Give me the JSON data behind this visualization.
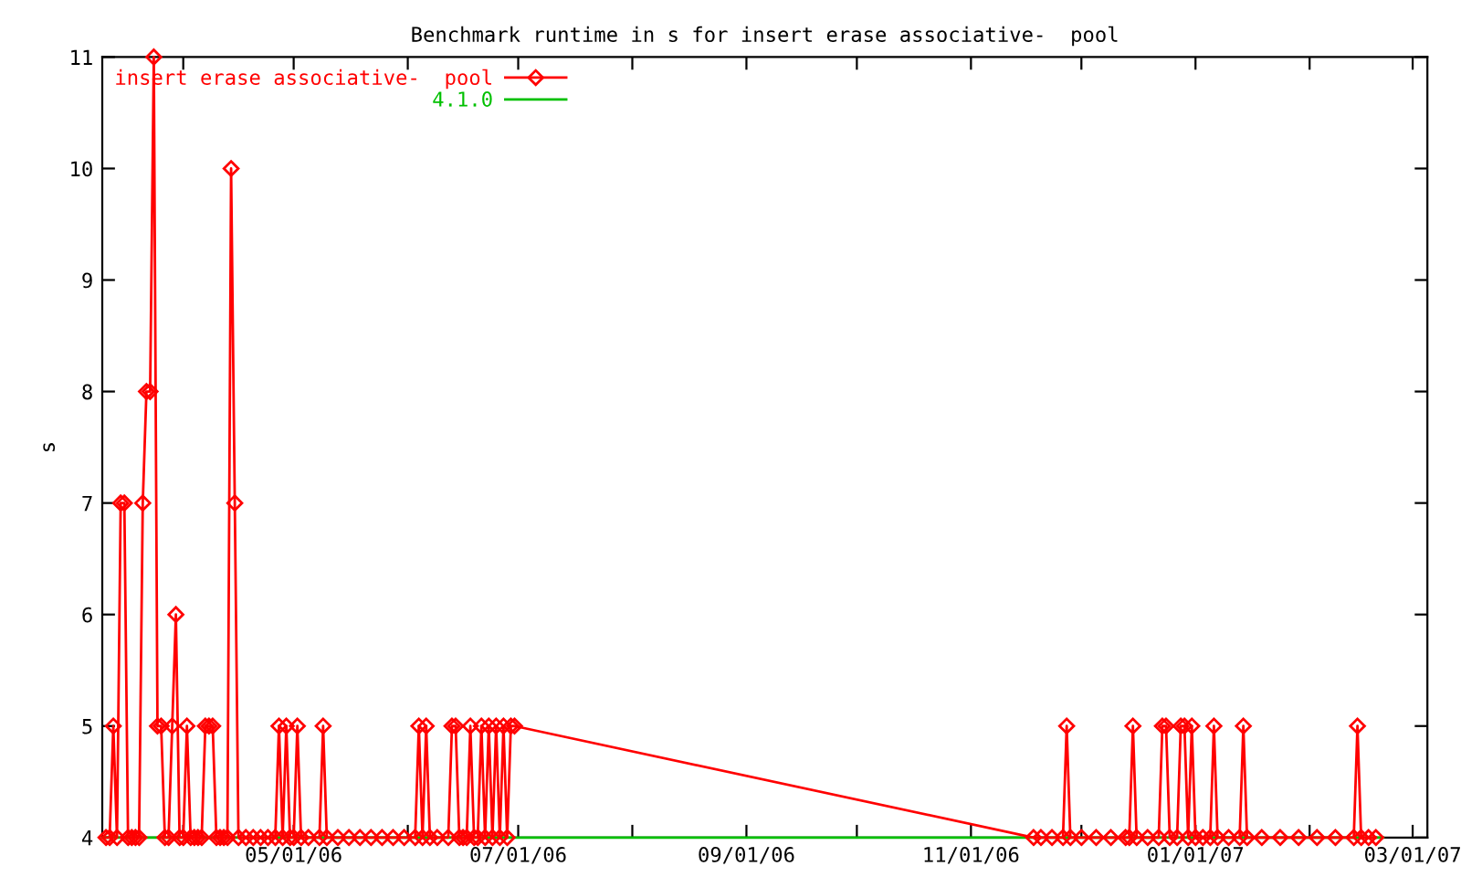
{
  "chart_data": {
    "type": "line",
    "title": "Benchmark runtime in s for insert erase associative-  pool",
    "ylabel": "s",
    "xlim": [
      "2006-03-10",
      "2007-03-05"
    ],
    "ylim": [
      4,
      11
    ],
    "yticks": [
      4,
      5,
      6,
      7,
      8,
      9,
      10,
      11
    ],
    "xticks": [
      {
        "value": "2006-04-01",
        "label": null
      },
      {
        "value": "2006-05-01",
        "label": "05/01/06"
      },
      {
        "value": "2006-06-01",
        "label": null
      },
      {
        "value": "2006-07-01",
        "label": "07/01/06"
      },
      {
        "value": "2006-08-01",
        "label": null
      },
      {
        "value": "2006-09-01",
        "label": "09/01/06"
      },
      {
        "value": "2006-10-01",
        "label": null
      },
      {
        "value": "2006-11-01",
        "label": "11/01/06"
      },
      {
        "value": "2006-12-01",
        "label": null
      },
      {
        "value": "2007-01-01",
        "label": "01/01/07"
      },
      {
        "value": "2007-02-01",
        "label": null
      },
      {
        "value": "2007-03-01",
        "label": "03/01/07"
      }
    ],
    "grid": false,
    "legend": "top left",
    "series": [
      {
        "name": "insert erase associative-  pool",
        "color": "#ff0000",
        "marker": "diamond",
        "x": [
          "2006-03-11",
          "2006-03-12",
          "2006-03-13",
          "2006-03-14",
          "2006-03-15",
          "2006-03-16",
          "2006-03-17",
          "2006-03-18",
          "2006-03-19",
          "2006-03-20",
          "2006-03-21",
          "2006-03-22",
          "2006-03-23",
          "2006-03-24",
          "2006-03-25",
          "2006-03-26",
          "2006-03-27",
          "2006-03-28",
          "2006-03-29",
          "2006-03-30",
          "2006-03-31",
          "2006-04-01",
          "2006-04-02",
          "2006-04-03",
          "2006-04-04",
          "2006-04-05",
          "2006-04-06",
          "2006-04-07",
          "2006-04-08",
          "2006-04-09",
          "2006-04-10",
          "2006-04-11",
          "2006-04-12",
          "2006-04-13",
          "2006-04-14",
          "2006-04-15",
          "2006-04-16",
          "2006-04-18",
          "2006-04-20",
          "2006-04-22",
          "2006-04-24",
          "2006-04-26",
          "2006-04-27",
          "2006-04-28",
          "2006-04-29",
          "2006-04-30",
          "2006-05-01",
          "2006-05-02",
          "2006-05-03",
          "2006-05-05",
          "2006-05-08",
          "2006-05-09",
          "2006-05-10",
          "2006-05-13",
          "2006-05-16",
          "2006-05-19",
          "2006-05-22",
          "2006-05-25",
          "2006-05-28",
          "2006-05-31",
          "2006-06-03",
          "2006-06-04",
          "2006-06-05",
          "2006-06-06",
          "2006-06-07",
          "2006-06-09",
          "2006-06-12",
          "2006-06-13",
          "2006-06-14",
          "2006-06-15",
          "2006-06-16",
          "2006-06-17",
          "2006-06-18",
          "2006-06-19",
          "2006-06-20",
          "2006-06-21",
          "2006-06-22",
          "2006-06-23",
          "2006-06-24",
          "2006-06-25",
          "2006-06-26",
          "2006-06-27",
          "2006-06-28",
          "2006-06-29",
          "2006-06-30",
          "2006-11-18",
          "2006-11-20",
          "2006-11-23",
          "2006-11-26",
          "2006-11-27",
          "2006-11-28",
          "2006-12-01",
          "2006-12-05",
          "2006-12-09",
          "2006-12-13",
          "2006-12-14",
          "2006-12-15",
          "2006-12-16",
          "2006-12-19",
          "2006-12-22",
          "2006-12-23",
          "2006-12-24",
          "2006-12-25",
          "2006-12-27",
          "2006-12-28",
          "2006-12-29",
          "2006-12-30",
          "2006-12-31",
          "2007-01-01",
          "2007-01-03",
          "2007-01-05",
          "2007-01-06",
          "2007-01-07",
          "2007-01-10",
          "2007-01-13",
          "2007-01-14",
          "2007-01-15",
          "2007-01-19",
          "2007-01-24",
          "2007-01-29",
          "2007-02-03",
          "2007-02-08",
          "2007-02-13",
          "2007-02-14",
          "2007-02-15",
          "2007-02-17",
          "2007-02-19"
        ],
        "values": [
          4,
          4,
          5,
          4,
          7,
          7,
          4,
          4,
          4,
          4,
          7,
          8,
          8,
          11,
          5,
          5,
          4,
          4,
          5,
          6,
          4,
          4,
          5,
          4,
          4,
          4,
          4,
          5,
          5,
          5,
          4,
          4,
          4,
          4,
          10,
          7,
          4,
          4,
          4,
          4,
          4,
          4,
          5,
          4,
          5,
          4,
          4,
          5,
          4,
          4,
          4,
          5,
          4,
          4,
          4,
          4,
          4,
          4,
          4,
          4,
          4,
          5,
          4,
          5,
          4,
          4,
          4,
          5,
          5,
          4,
          4,
          4,
          5,
          4,
          4,
          5,
          4,
          5,
          4,
          5,
          4,
          5,
          4,
          5,
          5,
          4,
          4,
          4,
          4,
          5,
          4,
          4,
          4,
          4,
          4,
          4,
          5,
          4,
          4,
          4,
          5,
          5,
          4,
          4,
          5,
          5,
          4,
          5,
          4,
          4,
          4,
          5,
          4,
          4,
          4,
          5,
          4,
          4,
          4,
          4,
          4,
          4,
          4,
          5,
          4,
          4,
          4
        ]
      },
      {
        "name": "4.1.0",
        "color": "#00c000",
        "marker": "none",
        "x": [
          "2006-03-10",
          "2007-02-21"
        ],
        "values": [
          4,
          4
        ]
      }
    ]
  }
}
